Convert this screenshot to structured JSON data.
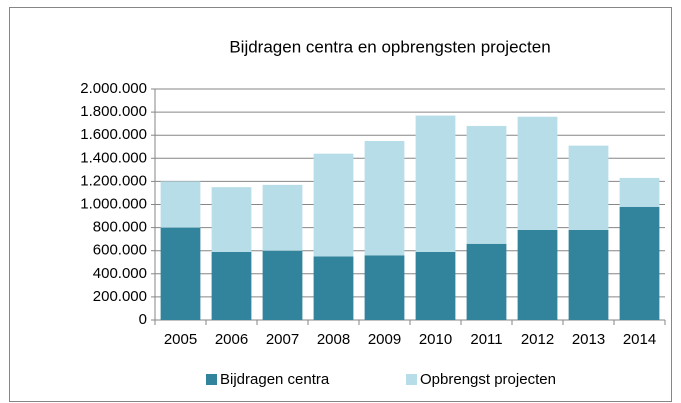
{
  "chart_data": {
    "type": "stacked_bar",
    "title": "Bijdragen centra en opbrengsten projecten",
    "categories": [
      "2005",
      "2006",
      "2007",
      "2008",
      "2009",
      "2010",
      "2011",
      "2012",
      "2013",
      "2014"
    ],
    "series": [
      {
        "name": "Bijdragen centra",
        "color": "#31849b",
        "values": [
          800000,
          590000,
          600000,
          550000,
          560000,
          590000,
          660000,
          780000,
          780000,
          980000
        ]
      },
      {
        "name": "Opbrengst projecten",
        "color": "#b7dee8",
        "values": [
          400000,
          560000,
          570000,
          890000,
          990000,
          1180000,
          1020000,
          980000,
          730000,
          250000
        ]
      }
    ],
    "ylim": [
      0,
      2000000
    ],
    "yticks": [
      0,
      {
        "value": 200000,
        "label": "200.000"
      },
      {
        "value": 400000,
        "label": "400.000"
      },
      {
        "value": 600000,
        "label": "600.000"
      },
      {
        "value": 800000,
        "label": "800.000"
      },
      {
        "value": 1000000,
        "label": "1.000.000"
      },
      {
        "value": 1200000,
        "label": "1.200.000"
      },
      {
        "value": 1400000,
        "label": "1.400.000"
      },
      {
        "value": 1600000,
        "label": "1.600.000"
      },
      {
        "value": 1800000,
        "label": "1.800.000"
      },
      {
        "value": 2000000,
        "label": "2.000.000"
      }
    ],
    "grid": true,
    "legend": "bottom"
  }
}
